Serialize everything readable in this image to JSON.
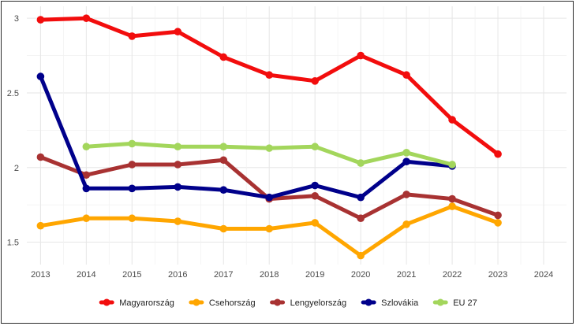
{
  "chart_data": {
    "type": "line",
    "title": "",
    "xlabel": "",
    "ylabel": "",
    "x": [
      2013,
      2014,
      2015,
      2016,
      2017,
      2018,
      2019,
      2020,
      2021,
      2022,
      2023,
      2024
    ],
    "x_ticks": [
      "2013",
      "2014",
      "2015",
      "2016",
      "2017",
      "2018",
      "2019",
      "2020",
      "2021",
      "2022",
      "2023",
      "2024"
    ],
    "y_ticks": [
      "1.5",
      "2",
      "2.5",
      "3"
    ],
    "y_tick_values": [
      1.5,
      2,
      2.5,
      3
    ],
    "xlim": [
      2012.7,
      2024.5
    ],
    "ylim": [
      1.35,
      3.08
    ],
    "grid": true,
    "legend_position": "bottom",
    "series": [
      {
        "name": "Magyarország",
        "color": "#f20d0d",
        "x": [
          2013,
          2014,
          2015,
          2016,
          2017,
          2018,
          2019,
          2020,
          2021,
          2022,
          2023
        ],
        "values": [
          2.99,
          3.0,
          2.88,
          2.91,
          2.74,
          2.62,
          2.58,
          2.75,
          2.62,
          2.32,
          2.09
        ]
      },
      {
        "name": "Csehország",
        "color": "#ffa600",
        "x": [
          2013,
          2014,
          2015,
          2016,
          2017,
          2018,
          2019,
          2020,
          2021,
          2022,
          2023
        ],
        "values": [
          1.61,
          1.66,
          1.66,
          1.64,
          1.59,
          1.59,
          1.63,
          1.41,
          1.62,
          1.74,
          1.63
        ]
      },
      {
        "name": "Lengyelország",
        "color": "#a83232",
        "x": [
          2013,
          2014,
          2015,
          2016,
          2017,
          2018,
          2019,
          2020,
          2021,
          2022,
          2023
        ],
        "values": [
          2.07,
          1.95,
          2.02,
          2.02,
          2.05,
          1.79,
          1.81,
          1.66,
          1.82,
          1.79,
          1.68
        ]
      },
      {
        "name": "Szlovákia",
        "color": "#00008b",
        "x": [
          2013,
          2014,
          2015,
          2016,
          2017,
          2018,
          2019,
          2020,
          2021,
          2022
        ],
        "values": [
          2.61,
          1.86,
          1.86,
          1.87,
          1.85,
          1.8,
          1.88,
          1.8,
          2.04,
          2.01
        ]
      },
      {
        "name": "EU 27",
        "color": "#a3d65c",
        "x": [
          2014,
          2015,
          2016,
          2017,
          2018,
          2019,
          2020,
          2021,
          2022
        ],
        "values": [
          2.14,
          2.16,
          2.14,
          2.14,
          2.13,
          2.14,
          2.03,
          2.1,
          2.02
        ]
      }
    ]
  }
}
